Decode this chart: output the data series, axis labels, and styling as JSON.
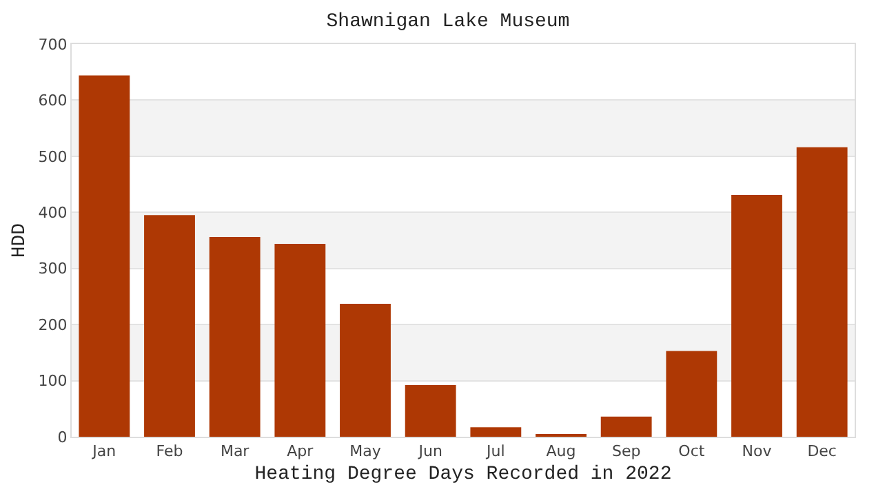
{
  "chart_data": {
    "type": "bar",
    "title": "Shawnigan Lake Museum",
    "xlabel": "Heating Degree Days Recorded in 2022",
    "ylabel": "HDD",
    "categories": [
      "Jan",
      "Feb",
      "Mar",
      "Apr",
      "May",
      "Jun",
      "Jul",
      "Aug",
      "Sep",
      "Oct",
      "Nov",
      "Dec"
    ],
    "values": [
      644,
      395,
      356,
      344,
      237,
      92,
      17,
      4,
      36,
      153,
      431,
      516
    ],
    "color": "#ae3804",
    "ylim": [
      0,
      700
    ],
    "yticks": [
      0,
      100,
      200,
      300,
      400,
      500,
      600,
      700
    ],
    "grid": "y",
    "bands": [
      {
        "axis": "y",
        "from": 100,
        "to": 200,
        "color": "#f3f3f3"
      },
      {
        "axis": "y",
        "from": 300,
        "to": 400,
        "color": "#f3f3f3"
      },
      {
        "axis": "y",
        "from": 500,
        "to": 600,
        "color": "#f3f3f3"
      }
    ]
  }
}
